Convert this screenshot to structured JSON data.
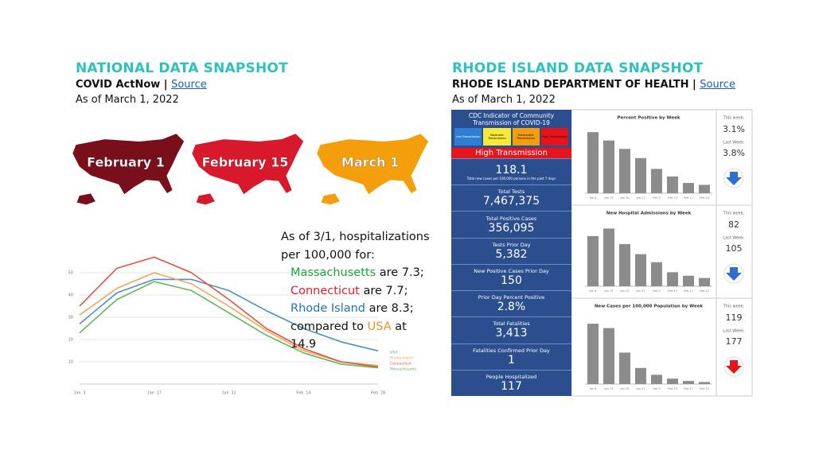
{
  "national": {
    "title": "NATIONAL DATA SNAPSHOT",
    "source_org": "COVID ActNow |",
    "source_link": "Source",
    "as_of": "As of March 1, 2022",
    "maps": [
      {
        "label": "February 1",
        "color": "#7a0f1c"
      },
      {
        "label": "February 15",
        "color": "#d7192b"
      },
      {
        "label": "March 1",
        "color": "#f59e0b"
      }
    ],
    "note": {
      "intro": "As of 3/1, hospitalizations per 100,000 for:",
      "items": [
        {
          "name": "Massachusetts",
          "text": "are 7.3;",
          "color": "#1aa538"
        },
        {
          "name": "Connecticut",
          "text": "are 7.7;",
          "color": "#e01f26"
        },
        {
          "name": "Rhode Island",
          "text": "are 8.3;",
          "color": "#1f74b4"
        }
      ],
      "closing": {
        "prefix": "compared to",
        "name": "USA",
        "suffix": "at 14.9",
        "color": "#f0902a"
      }
    },
    "chart": {
      "type": "line",
      "categories": [
        "Jan 3",
        null,
        "Jan 17",
        null,
        "Jan 31",
        null,
        "Feb 14",
        null,
        "Feb 28"
      ],
      "ylim": [
        0,
        60
      ],
      "yticks": [
        10,
        20,
        30,
        40,
        50
      ],
      "grid": true,
      "series": [
        {
          "name": "USA",
          "color": "#4b8fc7",
          "values": [
            27,
            41,
            47,
            47,
            42,
            33,
            25,
            19,
            14.9
          ]
        },
        {
          "name": "Rhode Island",
          "color": "#f5a35a",
          "values": [
            31,
            43,
            50,
            45,
            35,
            24,
            15,
            10,
            8.3
          ]
        },
        {
          "name": "Connecticut",
          "color": "#e2533f",
          "values": [
            35,
            52,
            57,
            50,
            38,
            25,
            16,
            10,
            7.7
          ]
        },
        {
          "name": "Massachusetts",
          "color": "#5fb85a",
          "values": [
            23,
            38,
            46,
            42,
            32,
            22,
            14,
            9,
            7.3
          ]
        }
      ]
    }
  },
  "rhode_island": {
    "title": "RHODE ISLAND DATA SNAPSHOT",
    "source_org": "RHODE ISLAND DEPARTMENT OF HEALTH |",
    "source_link": "Source",
    "as_of": "As of March 1, 2022",
    "cdc_title": "CDC Indicator of Community Transmission of COVID-19",
    "cdc_levels": [
      {
        "label": "Low Transmission",
        "color": "#2d7fd6"
      },
      {
        "label": "Moderate Transmission",
        "color": "#f7e93a"
      },
      {
        "label": "Substantial Transmission",
        "color": "#f59e0b"
      },
      {
        "label": "High Transmission",
        "color": "#e8131b"
      }
    ],
    "level": "High Transmission",
    "stats": [
      {
        "value": "118.1",
        "caption": "Total new cases per 100,000 persons in the past 7 days"
      },
      {
        "label": "Total Tests",
        "value": "7,467,375"
      },
      {
        "label": "Total Positive Cases",
        "value": "356,095"
      },
      {
        "label": "Tests Prior Day",
        "value": "5,382"
      },
      {
        "label": "New Positive Cases Prior Day",
        "value": "150"
      },
      {
        "label": "Prior Day Percent Positive",
        "value": "2.8%"
      },
      {
        "label": "Total Fatalities",
        "value": "3,413"
      },
      {
        "label": "Fatalities Confirmed Prior Day",
        "value": "1"
      },
      {
        "label": "People Hospitalized",
        "value": "117"
      }
    ],
    "charts": [
      {
        "type": "bar",
        "title": "Percent Positive by Week",
        "categories": [
          "Jan 6",
          "Jan 13",
          "Jan 20",
          "Jan 27",
          "Feb 3",
          "Feb 10",
          "Feb 17",
          "Feb 24"
        ],
        "values": [
          22.6,
          19.5,
          16.4,
          13,
          9,
          6.2,
          3.8,
          3.1
        ],
        "ylim": [
          0,
          25
        ],
        "color": "#8c8c8c",
        "this_week_label": "This week:",
        "this_week": "3.1%",
        "last_week_label": "Last Week:",
        "last_week": "3.8%",
        "arrow_color": "#2f6fd0"
      },
      {
        "type": "bar",
        "title": "New Hospital Admissions by Week",
        "categories": [
          "Jan 6",
          "Jan 13",
          "Jan 20",
          "Jan 27",
          "Feb 3",
          "Feb 10",
          "Feb 17",
          "Feb 24"
        ],
        "values": [
          500,
          575,
          420,
          320,
          240,
          140,
          105,
          82
        ],
        "ylim": [
          0,
          650
        ],
        "color": "#8c8c8c",
        "this_week_label": "This week:",
        "this_week": "82",
        "last_week_label": "Last Week:",
        "last_week": "105",
        "arrow_color": "#2f6fd0"
      },
      {
        "type": "bar",
        "title": "New Cases per 100,000 Population by Week",
        "categories": [
          "Jan 6",
          "Jan 13",
          "Jan 20",
          "Jan 27",
          "Feb 3",
          "Feb 10",
          "Feb 17",
          "Feb 24"
        ],
        "values": [
          3450,
          3200,
          1800,
          920,
          530,
          310,
          177,
          119
        ],
        "ylim": [
          0,
          4000
        ],
        "color": "#8c8c8c",
        "this_week_label": "This week:",
        "this_week": "119",
        "last_week_label": "Last Week:",
        "last_week": "177",
        "arrow_color": "#e8131b"
      }
    ]
  }
}
